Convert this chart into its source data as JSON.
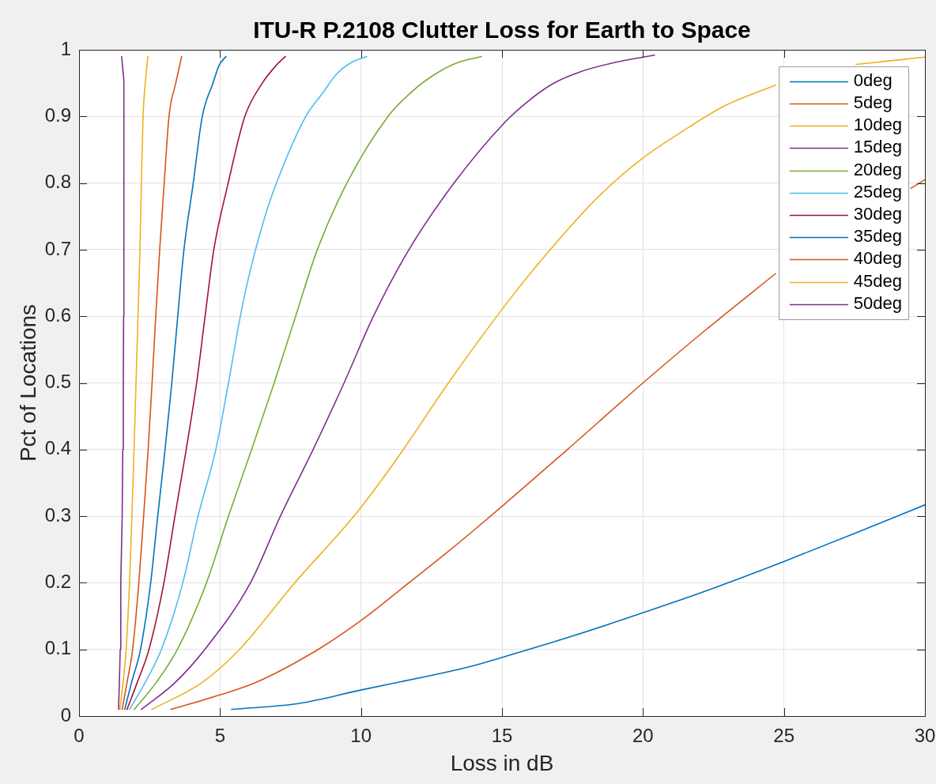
{
  "chart_data": {
    "type": "line",
    "title": "ITU-R P.2108 Clutter Loss for Earth to Space",
    "xlabel": "Loss in dB",
    "ylabel": "Pct of Locations",
    "xlim": [
      0,
      30
    ],
    "xticks": [
      0,
      5,
      10,
      15,
      20,
      25,
      30
    ],
    "ylim": [
      0,
      1
    ],
    "yticks": [
      0,
      0.1,
      0.2,
      0.3,
      0.4,
      0.5,
      0.6,
      0.7,
      0.8,
      0.9,
      1
    ],
    "grid": true,
    "legend": "top right",
    "marker": "none",
    "line_style": "solid",
    "series": [
      {
        "name": "0deg",
        "color": "#0072bd",
        "x": [
          5.41,
          7.81,
          9.99,
          12.38,
          13.95,
          15.01,
          17.5,
          20,
          22.5,
          25,
          27.5,
          30
        ],
        "values": [
          0.01,
          0.019,
          0.039,
          0.06,
          0.075,
          0.088,
          0.12,
          0.155,
          0.192,
          0.232,
          0.274,
          0.317
        ]
      },
      {
        "name": "5deg",
        "color": "#d95319",
        "x": [
          3.26,
          5.02,
          6.25,
          8.48,
          9.99,
          11.61,
          13.15,
          13.95,
          15.01,
          17.32,
          20.0,
          22.18,
          24.7,
          27.0,
          29.5,
          30.0
        ],
        "values": [
          0.01,
          0.032,
          0.05,
          0.1,
          0.143,
          0.197,
          0.249,
          0.277,
          0.315,
          0.4,
          0.5,
          0.578,
          0.664,
          null,
          0.792,
          0.805
        ]
      },
      {
        "name": "10deg",
        "color": "#edb120",
        "x": [
          2.59,
          4.35,
          5.69,
          7.65,
          9.75,
          10.88,
          11.5,
          13.1,
          15.12,
          16.41,
          18.36,
          19.98,
          21.6,
          22.9,
          24.7,
          26.0,
          27.56,
          30.0
        ],
        "values": [
          0.01,
          0.05,
          0.1,
          0.2,
          0.3,
          0.363,
          0.4,
          0.5,
          0.617,
          0.685,
          0.777,
          0.837,
          0.883,
          0.916,
          0.947,
          null,
          0.978,
          0.989
        ]
      },
      {
        "name": "15deg",
        "color": "#7e2f8e",
        "x": [
          2.21,
          3.4,
          4.46,
          6.08,
          7.14,
          8.3,
          9.4,
          10.44,
          11.7,
          13.3,
          15.12,
          15.9,
          16.8,
          17.71,
          19.0,
          20.41
        ],
        "values": [
          0.01,
          0.05,
          0.1,
          0.2,
          0.3,
          0.4,
          0.5,
          0.6,
          0.7,
          0.8,
          0.892,
          0.922,
          0.949,
          0.966,
          0.981,
          0.992
        ]
      },
      {
        "name": "20deg",
        "color": "#77ac30",
        "x": [
          1.96,
          2.73,
          3.49,
          4.52,
          5.3,
          6.12,
          6.92,
          7.68,
          8.45,
          9.5,
          10.96,
          11.88,
          12.69,
          13.44,
          14.27
        ],
        "values": [
          0.01,
          0.05,
          0.1,
          0.2,
          0.3,
          0.4,
          0.5,
          0.6,
          0.7,
          0.8,
          0.9,
          0.94,
          0.965,
          0.981,
          0.99
        ]
      },
      {
        "name": "25deg",
        "color": "#4dbeee",
        "x": [
          1.79,
          2.34,
          2.92,
          3.68,
          4.22,
          4.85,
          5.3,
          5.72,
          6.05,
          6.58,
          7.0,
          8.04,
          8.64,
          9.12,
          9.66,
          10.2
        ],
        "values": [
          0.01,
          0.05,
          0.1,
          0.2,
          0.3,
          0.4,
          0.5,
          0.6,
          0.665,
          0.748,
          0.8,
          0.9,
          0.935,
          0.963,
          0.981,
          0.99
        ]
      },
      {
        "name": "30deg",
        "color": "#a2142f",
        "x": [
          1.7,
          2.06,
          2.48,
          3.01,
          3.4,
          3.8,
          4.17,
          4.47,
          4.78,
          5.29,
          5.88,
          6.5,
          7.0,
          7.32
        ],
        "values": [
          0.01,
          0.05,
          0.1,
          0.2,
          0.3,
          0.4,
          0.5,
          0.6,
          0.7,
          0.8,
          0.9,
          0.95,
          0.977,
          0.99
        ]
      },
      {
        "name": "35deg",
        "color": "#0072bd",
        "x": [
          1.62,
          1.86,
          2.18,
          2.54,
          2.79,
          3.05,
          3.29,
          3.5,
          3.72,
          4.05,
          4.37,
          4.75,
          4.97,
          5.21
        ],
        "values": [
          0.01,
          0.05,
          0.1,
          0.2,
          0.3,
          0.4,
          0.5,
          0.6,
          0.7,
          0.8,
          0.9,
          0.95,
          0.977,
          0.99
        ]
      },
      {
        "name": "40deg",
        "color": "#d95319",
        "x": [
          1.53,
          1.7,
          1.9,
          2.12,
          2.29,
          2.45,
          2.59,
          2.72,
          2.86,
          3.02,
          3.19,
          3.43,
          3.64
        ],
        "values": [
          0.01,
          0.05,
          0.1,
          0.2,
          0.3,
          0.4,
          0.5,
          0.6,
          0.7,
          0.8,
          0.9,
          0.95,
          0.99
        ]
      },
      {
        "name": "45deg",
        "color": "#edb120",
        "x": [
          1.45,
          1.56,
          1.67,
          1.79,
          1.875,
          1.95,
          2.02,
          2.09,
          2.16,
          2.21,
          2.27,
          2.35,
          2.44
        ],
        "values": [
          0.01,
          0.05,
          0.1,
          0.2,
          0.3,
          0.4,
          0.5,
          0.6,
          0.7,
          0.8,
          0.9,
          0.95,
          0.99
        ]
      },
      {
        "name": "50deg",
        "color": "#7e2f8e",
        "x": [
          1.4,
          1.43,
          1.46,
          1.48,
          1.53,
          1.55,
          1.57,
          1.58,
          1.59,
          1.51
        ],
        "values": [
          0.01,
          0.05,
          0.1,
          0.2,
          0.3,
          0.4,
          0.5,
          0.6,
          0.954,
          0.99
        ]
      }
    ]
  }
}
